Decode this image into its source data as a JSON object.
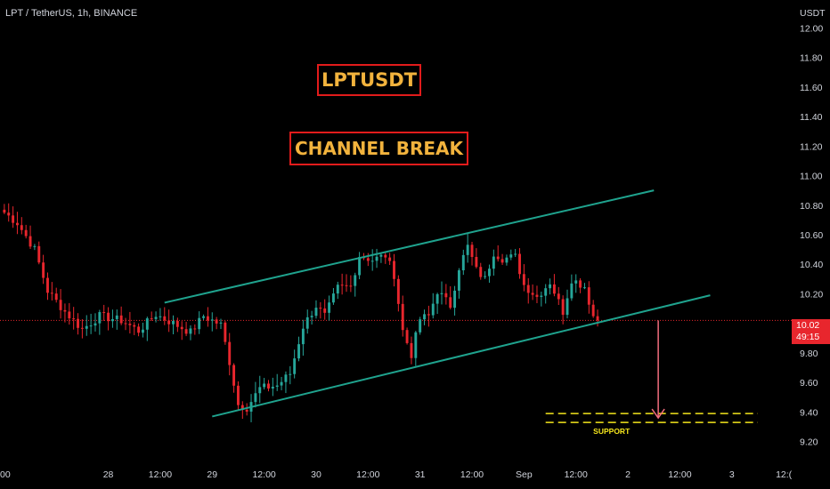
{
  "header": {
    "symbol": "LPT / TetherUS, 1h, BINANCE"
  },
  "annotations": {
    "title_box": "LPTUSDT",
    "pattern_box": "CHANNEL BREAK",
    "support_label": "SUPPORT"
  },
  "price_tag": {
    "price": "10.02",
    "countdown": "49:15"
  },
  "colors": {
    "background": "#000000",
    "up_candle": "#26a69a",
    "down_candle": "#e8262d",
    "channel_line": "#1fa38e",
    "support_lines": "#f5e61c",
    "arrow": "#f26d7d",
    "label_border": "#e21b1b",
    "label_text": "#f2b33d"
  },
  "chart_data": {
    "type": "candlestick",
    "currency": "USDT",
    "timeframe": "1h",
    "ylim": [
      9.15,
      12.02
    ],
    "y_ticks": [
      "12.00",
      "11.80",
      "11.60",
      "11.40",
      "11.20",
      "11.00",
      "10.80",
      "10.60",
      "10.40",
      "10.20",
      "10.00",
      "9.80",
      "9.60",
      "9.40",
      "9.20"
    ],
    "x_ticks": [
      "00",
      "28",
      "12:00",
      "29",
      "12:00",
      "30",
      "12:00",
      "31",
      "12:00",
      "Sep",
      "12:00",
      "2",
      "12:00",
      "3",
      "12:("
    ],
    "x_tick_positions": [
      0,
      24,
      36,
      48,
      60,
      72,
      84,
      96,
      108,
      120,
      132,
      144,
      156,
      168,
      180
    ],
    "x_range": [
      -1,
      181
    ],
    "current_price": 10.02,
    "anchors": [
      [
        0,
        10.75
      ],
      [
        3,
        10.68
      ],
      [
        7,
        10.5
      ],
      [
        10,
        10.22
      ],
      [
        14,
        10.08
      ],
      [
        18,
        9.96
      ],
      [
        22,
        10.05
      ],
      [
        27,
        10.02
      ],
      [
        31,
        9.95
      ],
      [
        35,
        10.06
      ],
      [
        39,
        10.0
      ],
      [
        43,
        9.94
      ],
      [
        46,
        10.05
      ],
      [
        50,
        9.99
      ],
      [
        52,
        9.74
      ],
      [
        54,
        9.45
      ],
      [
        56,
        9.43
      ],
      [
        59,
        9.56
      ],
      [
        63,
        9.58
      ],
      [
        66,
        9.66
      ],
      [
        69,
        9.98
      ],
      [
        72,
        10.12
      ],
      [
        74,
        10.05
      ],
      [
        77,
        10.24
      ],
      [
        80,
        10.25
      ],
      [
        82,
        10.46
      ],
      [
        85,
        10.43
      ],
      [
        88,
        10.46
      ],
      [
        90,
        10.33
      ],
      [
        92,
        9.95
      ],
      [
        94,
        9.79
      ],
      [
        96,
        10.03
      ],
      [
        98,
        10.05
      ],
      [
        100,
        10.22
      ],
      [
        103,
        10.12
      ],
      [
        105,
        10.38
      ],
      [
        107,
        10.52
      ],
      [
        109,
        10.36
      ],
      [
        111,
        10.3
      ],
      [
        113,
        10.48
      ],
      [
        115,
        10.44
      ],
      [
        118,
        10.45
      ],
      [
        120,
        10.26
      ],
      [
        123,
        10.18
      ],
      [
        126,
        10.28
      ],
      [
        129,
        10.08
      ],
      [
        131,
        10.3
      ],
      [
        134,
        10.25
      ],
      [
        136,
        10.05
      ],
      [
        137,
        10.02
      ]
    ],
    "channel_upper": {
      "from": [
        37,
        10.14
      ],
      "to": [
        150,
        10.9
      ]
    },
    "channel_lower": {
      "from": [
        48,
        9.37
      ],
      "to": [
        163,
        10.19
      ]
    },
    "break_arrow": {
      "x": 151,
      "from": 10.02,
      "to": 9.36
    },
    "support_zone": {
      "x_from": 125,
      "x_to": 174,
      "levels": [
        9.39,
        9.33
      ]
    }
  }
}
